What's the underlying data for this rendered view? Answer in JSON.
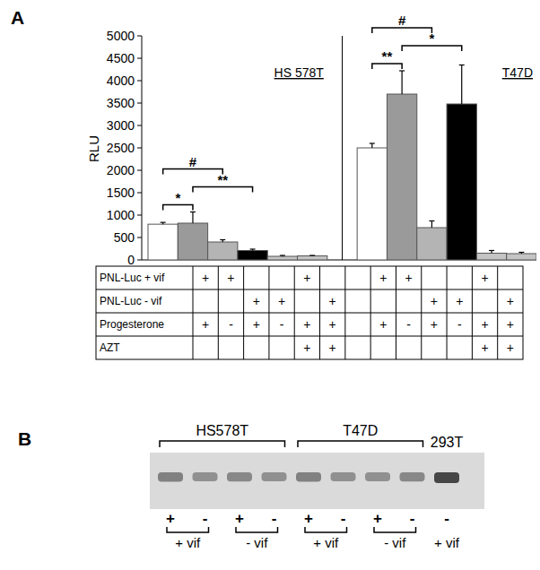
{
  "panel_labels": [
    "A",
    "B"
  ],
  "chart_data": {
    "type": "bar",
    "ylabel": "RLU",
    "categories": [
      null,
      null,
      null,
      null,
      null,
      null,
      null,
      null,
      null,
      null,
      null,
      null,
      null
    ],
    "ylim": [
      0,
      5000
    ],
    "yticks": [
      0,
      500,
      1000,
      1500,
      2000,
      2500,
      3000,
      3500,
      4000,
      4500,
      5000
    ],
    "grid": false,
    "series": [
      {
        "values": [
          797,
          820,
          400,
          210,
          80,
          90,
          null,
          2500,
          3700,
          720,
          3480,
          150,
          140
        ],
        "errors": [
          40,
          250,
          50,
          30,
          20,
          10,
          null,
          100,
          520,
          150,
          870,
          60,
          30
        ],
        "colors": [
          "#ffffff",
          "#9a9a9a",
          "#b4b4b4",
          "#000000",
          "#c4c4c4",
          "#c4c4c4",
          null,
          "#ffffff",
          "#9a9a9a",
          "#b4b4b4",
          "#000000",
          "#c4c4c4",
          "#c4c4c4"
        ]
      }
    ],
    "groups": [
      {
        "label": "HS 578T",
        "span": [
          0,
          5
        ]
      },
      {
        "label": "T47D",
        "span": [
          7,
          12
        ]
      }
    ],
    "annotations": [
      {
        "text": "*",
        "between": [
          0,
          1
        ]
      },
      {
        "text": "**",
        "between": [
          1,
          3
        ]
      },
      {
        "text": "#",
        "between": [
          0,
          2
        ]
      },
      {
        "text": "**",
        "between": [
          7,
          8
        ]
      },
      {
        "text": "*",
        "between": [
          8,
          10
        ]
      },
      {
        "text": "#",
        "between": [
          7,
          9
        ]
      }
    ]
  },
  "table": {
    "rows": [
      {
        "label": "PNL-Luc + vif",
        "cells": [
          "+",
          "+",
          null,
          null,
          "+",
          null,
          null,
          "+",
          "+",
          null,
          null,
          "+",
          null
        ]
      },
      {
        "label": "PNL-Luc - vif",
        "cells": [
          null,
          null,
          "+",
          "+",
          null,
          "+",
          null,
          null,
          null,
          "+",
          "+",
          null,
          "+"
        ]
      },
      {
        "label": "Progesterone",
        "cells": [
          "+",
          "-",
          "+",
          "-",
          "+",
          "+",
          null,
          "+",
          "-",
          "+",
          "-",
          "+",
          "+"
        ]
      },
      {
        "label": "AZT",
        "cells": [
          null,
          null,
          null,
          null,
          "+",
          "+",
          null,
          null,
          null,
          null,
          null,
          "+",
          "+"
        ]
      }
    ]
  },
  "blot": {
    "cell_lines": [
      {
        "name": "HS578T",
        "lanes": [
          0,
          3
        ]
      },
      {
        "name": "T47D",
        "lanes": [
          4,
          7
        ]
      },
      {
        "name": "293T",
        "lanes": [
          8,
          8
        ]
      }
    ],
    "lane_signs": [
      "+",
      "-",
      "+",
      "-",
      "+",
      "-",
      "+",
      "-",
      "-"
    ],
    "vif_groups": [
      {
        "label": "+ vif",
        "lanes": [
          0,
          1
        ]
      },
      {
        "label": "- vif",
        "lanes": [
          2,
          3
        ]
      },
      {
        "label": "+ vif",
        "lanes": [
          4,
          5
        ]
      },
      {
        "label": "- vif",
        "lanes": [
          6,
          7
        ]
      },
      {
        "label": "+ vif",
        "lanes": [
          8,
          8
        ]
      }
    ],
    "band_intensity": [
      0.6,
      0.5,
      0.55,
      0.5,
      0.6,
      0.5,
      0.5,
      0.55,
      1
    ]
  }
}
